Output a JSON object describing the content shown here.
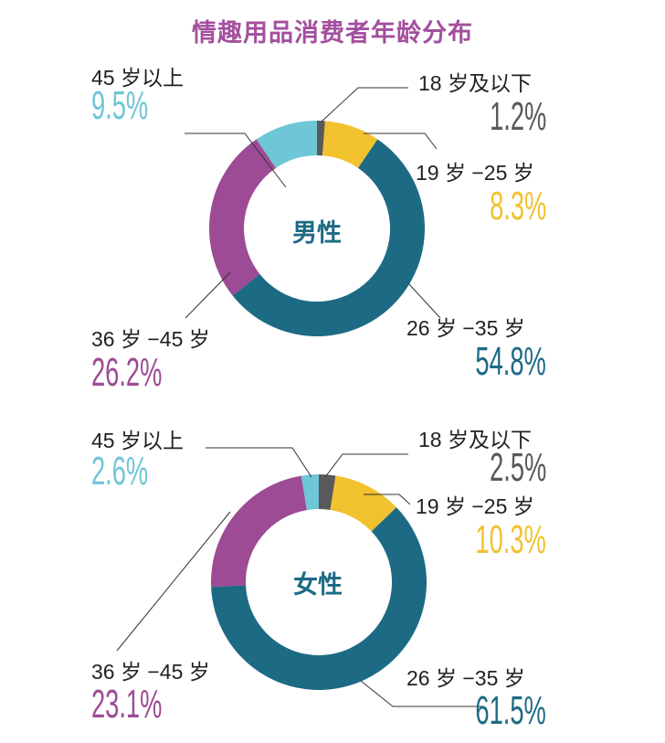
{
  "chart_data": [
    {
      "type": "pie",
      "variant": "donut",
      "title": "情趣用品消费者年龄分布",
      "center_label": "男性",
      "slices": [
        {
          "label": "18 岁及以下",
          "value": 1.2,
          "display": "1.2%",
          "color": "#58595b"
        },
        {
          "label": "19 岁 −25 岁",
          "value": 8.3,
          "display": "8.3%",
          "color": "#f2c12e"
        },
        {
          "label": "26 岁 −35 岁",
          "value": 54.8,
          "display": "54.8%",
          "color": "#1d6a85"
        },
        {
          "label": "36 岁 −45 岁",
          "value": 26.2,
          "display": "26.2%",
          "color": "#9c4b94"
        },
        {
          "label": "45 岁以上",
          "value": 9.5,
          "display": "9.5%",
          "color": "#6ec6d6"
        }
      ]
    },
    {
      "type": "pie",
      "variant": "donut",
      "center_label": "女性",
      "slices": [
        {
          "label": "18 岁及以下",
          "value": 2.5,
          "display": "2.5%",
          "color": "#58595b"
        },
        {
          "label": "19 岁 −25 岁",
          "value": 10.3,
          "display": "10.3%",
          "color": "#f2c12e"
        },
        {
          "label": "26 岁 −35 岁",
          "value": 61.5,
          "display": "61.5%",
          "color": "#1d6a85"
        },
        {
          "label": "36 岁 −45 岁",
          "value": 23.1,
          "display": "23.1%",
          "color": "#9c4b94"
        },
        {
          "label": "45 岁以上",
          "value": 2.6,
          "display": "2.6%",
          "color": "#6ec6d6"
        }
      ]
    }
  ]
}
